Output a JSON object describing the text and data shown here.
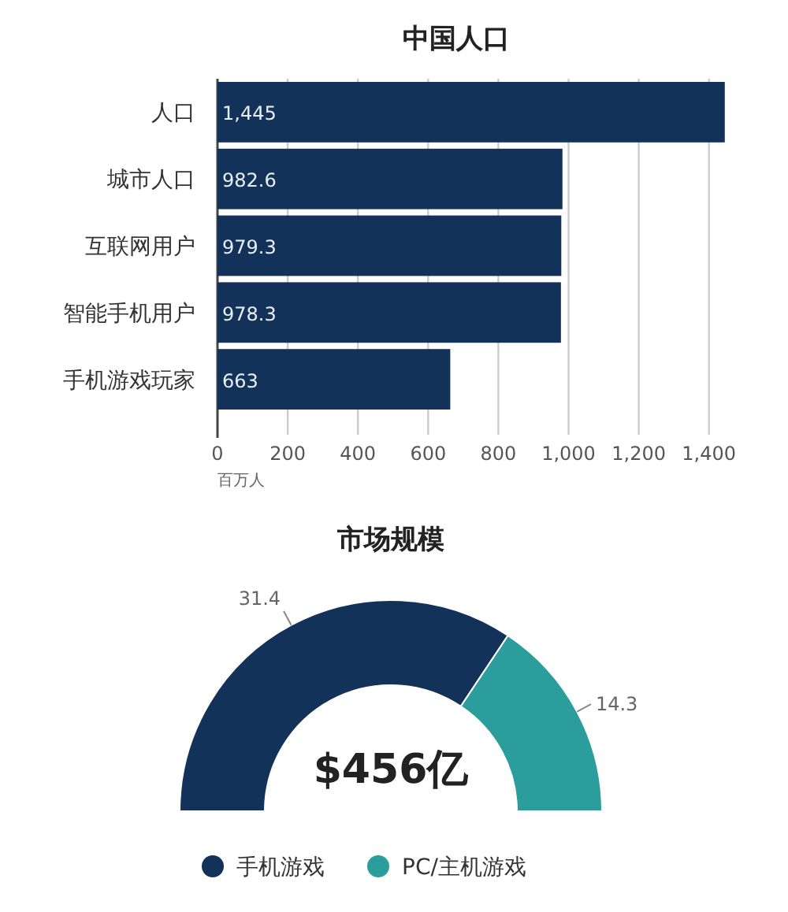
{
  "chart_data": [
    {
      "type": "bar",
      "orientation": "horizontal",
      "title": "中国人口",
      "xlabel": "百万人",
      "categories": [
        "人口",
        "城市人口",
        "互联网用户",
        "智能手机用户",
        "手机游戏玩家"
      ],
      "values": [
        1445,
        982.6,
        979.3,
        978.3,
        663
      ],
      "value_labels": [
        "1,445",
        "982.6",
        "979.3",
        "978.3",
        "663"
      ],
      "color": "#13325a",
      "xlim": [
        0,
        1450
      ],
      "xticks": [
        0,
        200,
        400,
        600,
        800,
        {
          "value": 1000,
          "label": "1,000"
        },
        {
          "value": 1200,
          "label": "1,200"
        },
        {
          "value": 1400,
          "label": "1,400"
        }
      ],
      "grid": "x"
    },
    {
      "type": "donut",
      "title": "市场规模",
      "categories": [
        "手机游戏",
        "PC/主机游戏"
      ],
      "values": [
        31.4,
        14.3
      ],
      "colors": [
        "#13325a",
        "#2a9d9c"
      ],
      "data_labels": true,
      "annotations": [
        "$456亿"
      ],
      "legend": "bottom"
    }
  ]
}
